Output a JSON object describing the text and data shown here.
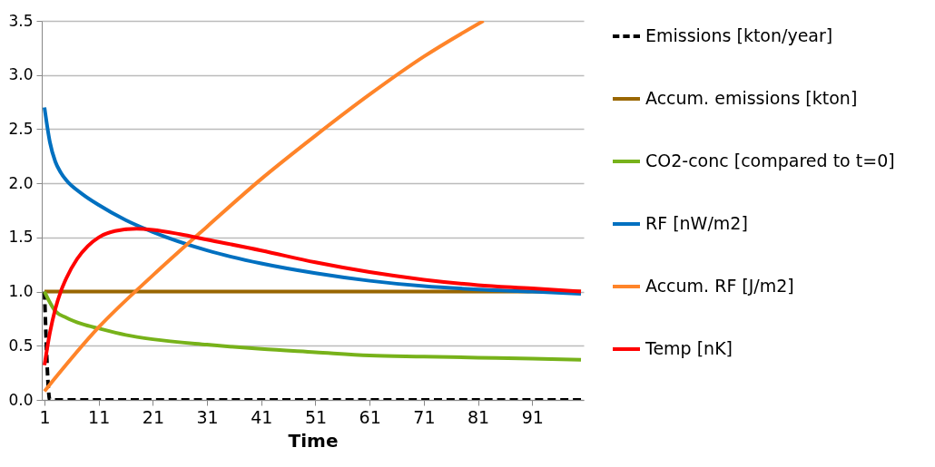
{
  "chart_data": {
    "type": "line",
    "xlabel": "Time",
    "xlim": [
      0.5,
      100.5
    ],
    "xticks": [
      1,
      11,
      21,
      31,
      41,
      51,
      61,
      71,
      81,
      91
    ],
    "ylim": [
      0,
      3.5
    ],
    "yticks": [
      {
        "value": 0,
        "label": "0.0"
      },
      {
        "value": 0.5,
        "label": "0.5"
      },
      {
        "value": 1,
        "label": "1.0"
      },
      {
        "value": 1.5,
        "label": "1.5"
      },
      {
        "value": 2,
        "label": "2.0"
      },
      {
        "value": 2.5,
        "label": "2.5"
      },
      {
        "value": 3,
        "label": "3.0"
      },
      {
        "value": 3.5,
        "label": "3.5"
      }
    ],
    "grid": "y",
    "legend": "right",
    "series": [
      {
        "name": "Emissions [kton/year]",
        "color": "#000000",
        "line_style": "dashed",
        "x": [
          1,
          2,
          100
        ],
        "values": [
          1,
          0,
          0
        ]
      },
      {
        "name": "Accum. emissions [kton]",
        "color": "#996600",
        "x": [
          1,
          100
        ],
        "values": [
          1,
          1
        ]
      },
      {
        "name": "CO2-conc [compared to t=0]",
        "color": "#77b21a",
        "x": [
          1,
          2,
          3,
          5,
          8,
          11,
          16,
          21,
          31,
          41,
          51,
          61,
          71,
          81,
          91,
          100
        ],
        "values": [
          1,
          0.9,
          0.82,
          0.76,
          0.7,
          0.66,
          0.6,
          0.56,
          0.51,
          0.47,
          0.44,
          0.41,
          0.4,
          0.39,
          0.38,
          0.37
        ]
      },
      {
        "name": "RF [nW/m2]",
        "color": "#0070c0",
        "x": [
          1,
          2,
          3,
          4,
          5,
          8,
          11,
          16,
          21,
          31,
          41,
          51,
          61,
          71,
          81,
          91,
          100
        ],
        "values": [
          2.7,
          2.38,
          2.2,
          2.1,
          2.03,
          1.9,
          1.8,
          1.66,
          1.55,
          1.38,
          1.26,
          1.17,
          1.1,
          1.05,
          1.02,
          1,
          0.98
        ]
      },
      {
        "name": "Accum. RF [J/m2]",
        "color": "#ff8429",
        "x": [
          1,
          11,
          21,
          31,
          41,
          51,
          61,
          71,
          82
        ],
        "values": [
          0.08,
          0.67,
          1.15,
          1.6,
          2.04,
          2.44,
          2.82,
          3.17,
          3.5
        ]
      },
      {
        "name": "Temp [nK]",
        "color": "#ff0000",
        "x": [
          1,
          2,
          3,
          4,
          5,
          7,
          9,
          11,
          14,
          18,
          21,
          26,
          31,
          41,
          51,
          61,
          71,
          81,
          91,
          100
        ],
        "values": [
          0.32,
          0.62,
          0.84,
          1.0,
          1.12,
          1.3,
          1.42,
          1.5,
          1.56,
          1.58,
          1.57,
          1.53,
          1.48,
          1.38,
          1.27,
          1.18,
          1.11,
          1.06,
          1.03,
          1.0
        ]
      }
    ]
  }
}
